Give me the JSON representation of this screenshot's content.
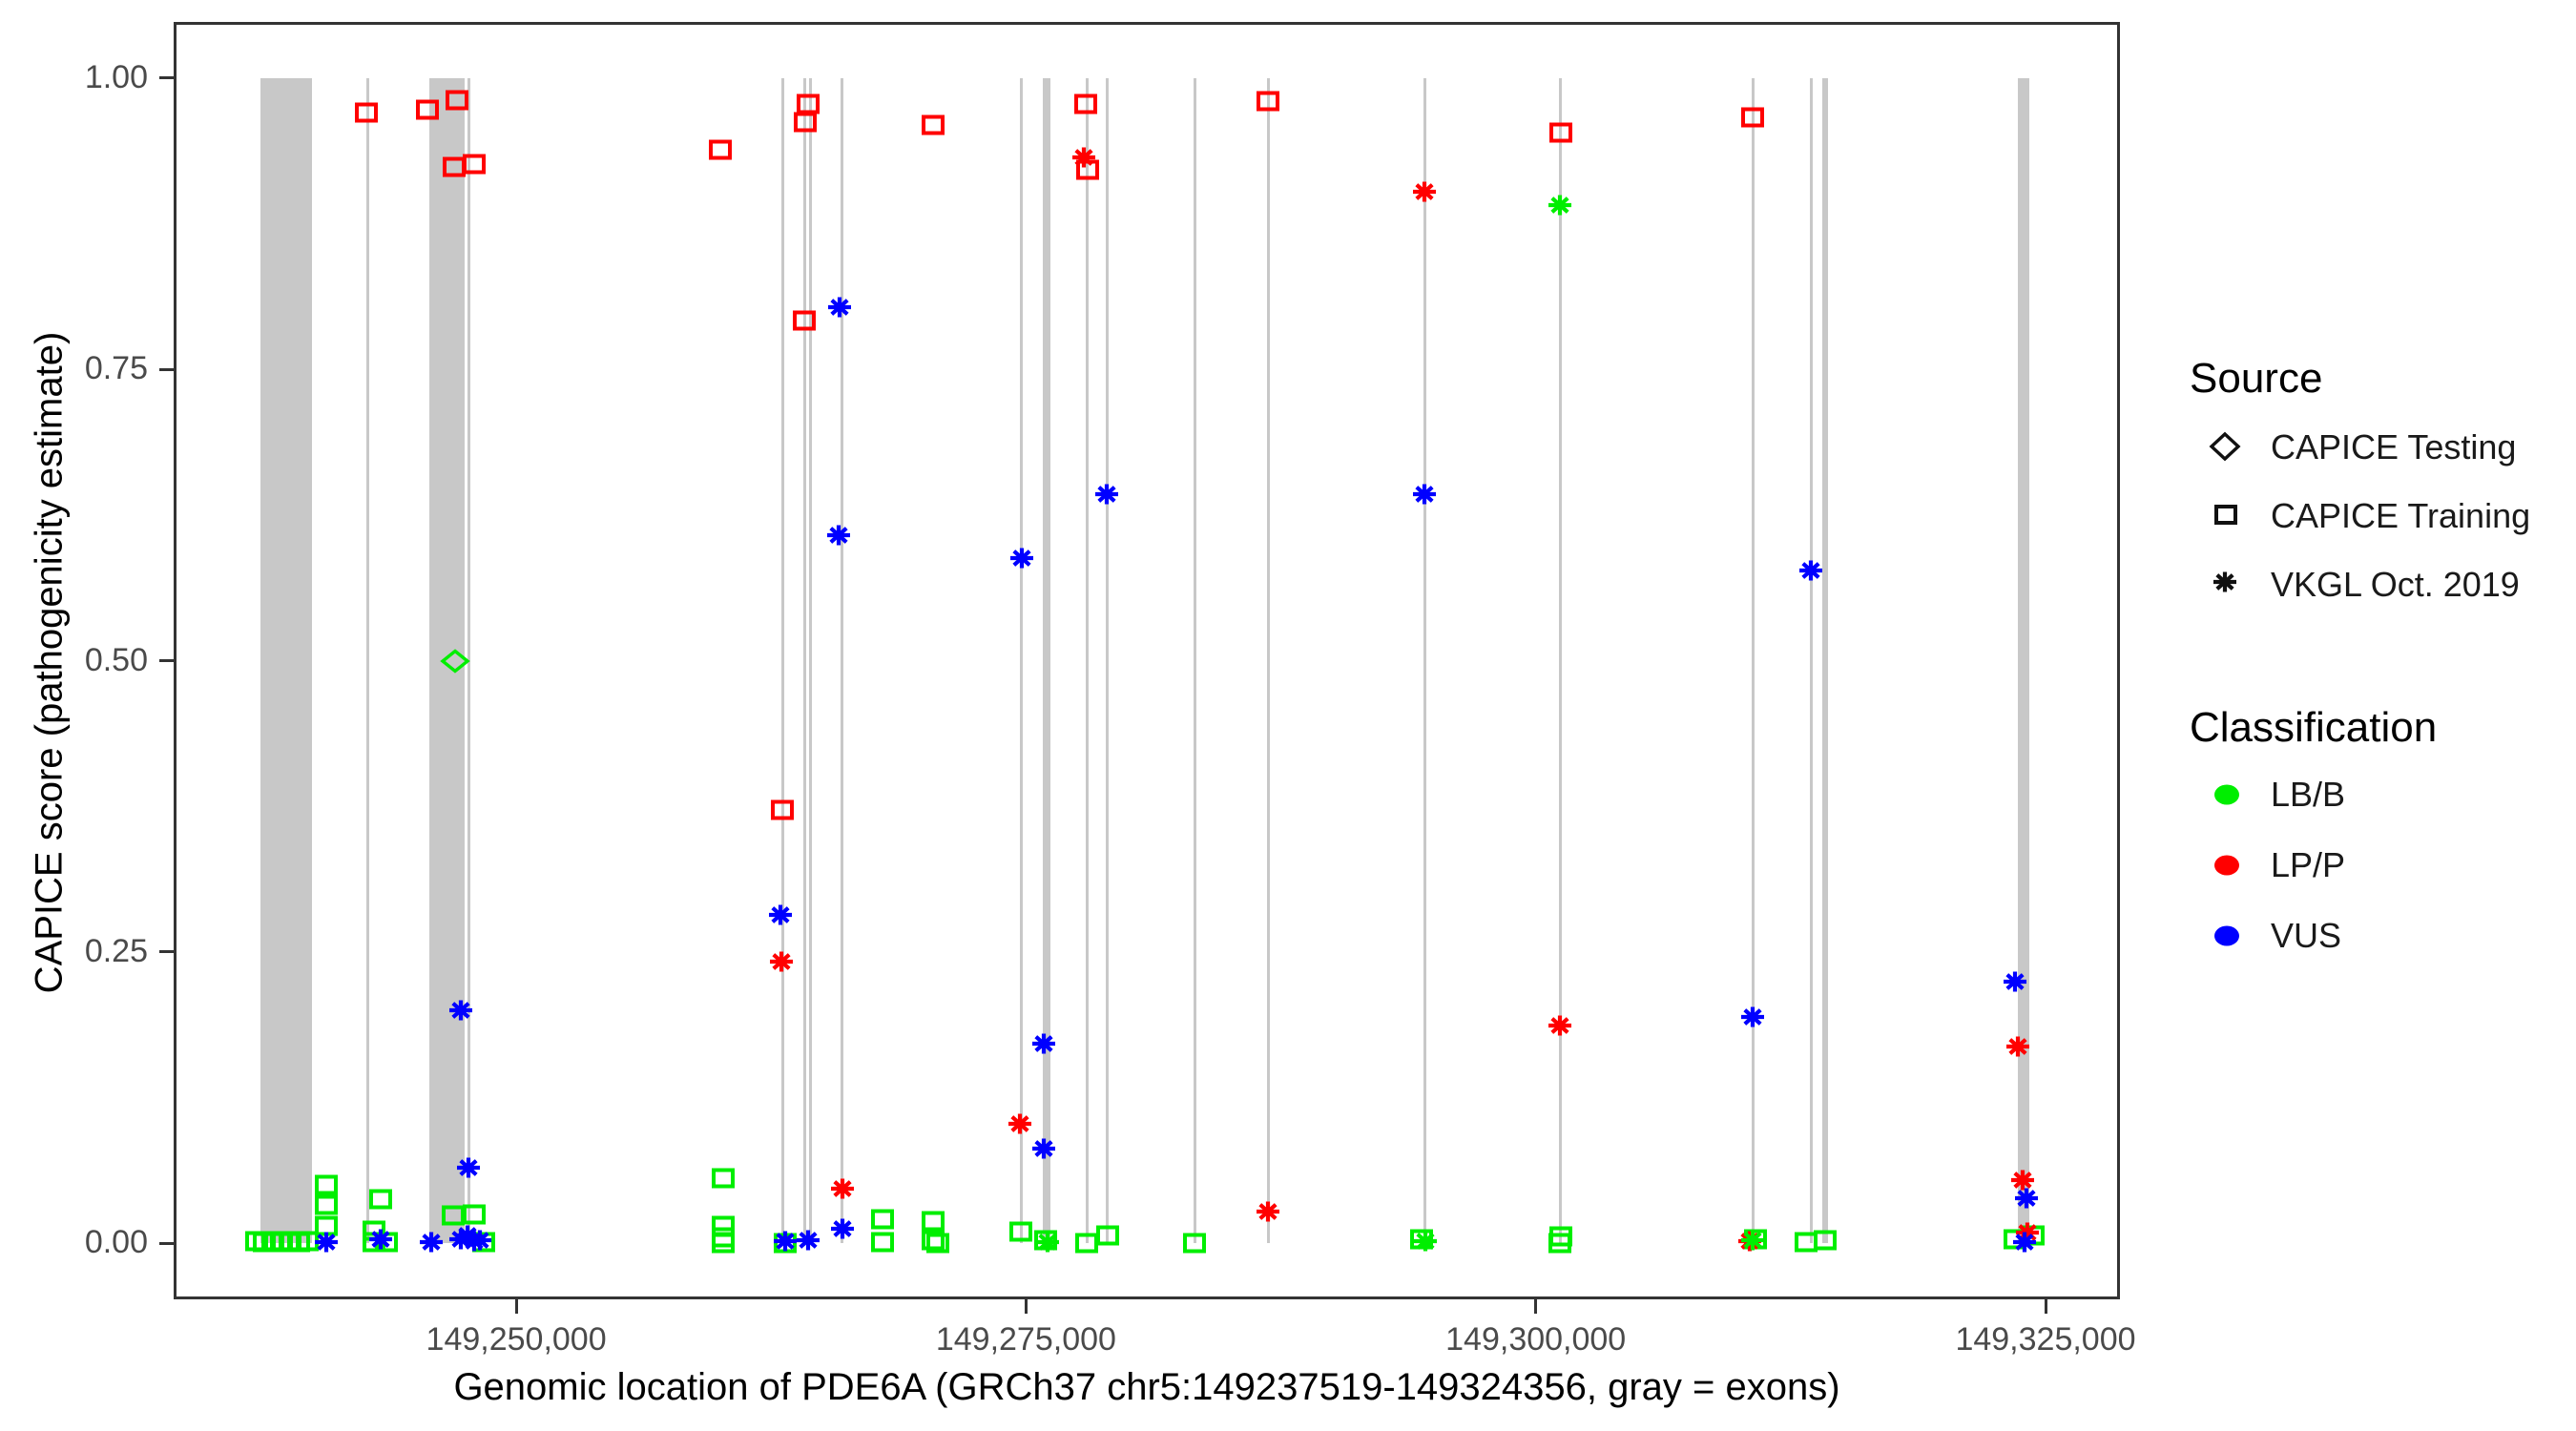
{
  "figure": {
    "xlabel": "Genomic location of PDE6A (GRCh37 chr5:149237519-149324356, gray = exons)",
    "ylabel": "CAPICE score (pathogenicity estimate)"
  },
  "legend": {
    "source": {
      "title": "Source",
      "items": [
        {
          "label": "CAPICE Testing",
          "symbol": "diamond"
        },
        {
          "label": "CAPICE Training",
          "symbol": "square"
        },
        {
          "label": "VKGL Oct. 2019",
          "symbol": "asterisk"
        }
      ]
    },
    "classification": {
      "title": "Classification",
      "items": [
        {
          "label": "LB/B",
          "color": "#00EE00"
        },
        {
          "label": "LP/P",
          "color": "#FF0000"
        },
        {
          "label": "VUS",
          "color": "#0000FF"
        }
      ]
    }
  },
  "chart_data": {
    "type": "scatter",
    "title": "",
    "xlabel": "Genomic location of PDE6A (GRCh37 chr5:149237519-149324356, gray = exons)",
    "ylabel": "CAPICE score (pathogenicity estimate)",
    "legend_position": "right",
    "grid": false,
    "x_axis": {
      "min": 149233200,
      "max": 149328650,
      "ticks": [
        {
          "v": 149250000,
          "label": "149,250,000"
        },
        {
          "v": 149275000,
          "label": "149,275,000"
        },
        {
          "v": 149300000,
          "label": "149,300,000"
        },
        {
          "v": 149325000,
          "label": "149,325,000"
        }
      ]
    },
    "y_axis": {
      "min": -0.048,
      "max": 1.048,
      "ticks": [
        {
          "v": 1.0,
          "label": "1.00"
        },
        {
          "v": 0.75,
          "label": "0.75"
        },
        {
          "v": 0.5,
          "label": "0.50"
        },
        {
          "v": 0.25,
          "label": "0.25"
        },
        {
          "v": 0.0,
          "label": "0.00"
        }
      ]
    },
    "exon_color": "#C8C8C8",
    "exon_note": "gray vertical bands/lines = exons of PDE6A, drawn from score 0 to 1",
    "exons": [
      [
        149237450,
        149240000
      ],
      [
        149242650,
        149242790
      ],
      [
        149245740,
        149247470
      ],
      [
        149247590,
        149247730
      ],
      [
        149262990,
        149263130
      ],
      [
        149264070,
        149264200
      ],
      [
        149264350,
        149264490
      ],
      [
        149265890,
        149266030
      ],
      [
        149274680,
        149274820
      ],
      [
        149275820,
        149276200
      ],
      [
        149277910,
        149278050
      ],
      [
        149278890,
        149279030
      ],
      [
        149283200,
        149283340
      ],
      [
        149286800,
        149286940
      ],
      [
        149294470,
        149294610
      ],
      [
        149301120,
        149301260
      ],
      [
        149310570,
        149310710
      ],
      [
        149313420,
        149313560
      ],
      [
        149314050,
        149314330
      ],
      [
        149323640,
        149324200
      ]
    ],
    "groups": [
      {
        "source": "CAPICE Training",
        "classification": "LP/P",
        "symbol": "square",
        "color": "#FF0000",
        "points": [
          [
            149242650,
            0.97
          ],
          [
            149245650,
            0.973
          ],
          [
            149247100,
            0.981
          ],
          [
            149246950,
            0.924
          ],
          [
            149247950,
            0.926
          ],
          [
            149260000,
            0.938
          ],
          [
            149264150,
            0.962
          ],
          [
            149264320,
            0.978
          ],
          [
            149264130,
            0.792
          ],
          [
            149263050,
            0.372
          ],
          [
            149270450,
            0.96
          ],
          [
            149277930,
            0.978
          ],
          [
            149278030,
            0.921
          ],
          [
            149286870,
            0.98
          ],
          [
            149301230,
            0.953
          ],
          [
            149310640,
            0.966
          ]
        ]
      },
      {
        "source": "CAPICE Training",
        "classification": "LB/B",
        "symbol": "square",
        "color": "#00EE00",
        "points": [
          [
            149237250,
            0.002
          ],
          [
            149237650,
            0.001
          ],
          [
            149238070,
            0.002
          ],
          [
            149238490,
            0.001
          ],
          [
            149238910,
            0.002
          ],
          [
            149239330,
            0.001
          ],
          [
            149239750,
            0.002
          ],
          [
            149240700,
            0.05
          ],
          [
            149240700,
            0.033
          ],
          [
            149240700,
            0.015
          ],
          [
            149243360,
            0.038
          ],
          [
            149243030,
            0.011
          ],
          [
            149243030,
            0.001
          ],
          [
            149243640,
            0.001
          ],
          [
            149246910,
            0.024
          ],
          [
            149247940,
            0.025
          ],
          [
            149248410,
            0.001
          ],
          [
            149260150,
            0.056
          ],
          [
            149260150,
            0.015
          ],
          [
            149260150,
            0.005
          ],
          [
            149260150,
            0.0
          ],
          [
            149263200,
            0.0
          ],
          [
            149267970,
            0.021
          ],
          [
            149267970,
            0.001
          ],
          [
            149270450,
            0.019
          ],
          [
            149270450,
            0.003
          ],
          [
            149270680,
            0.0
          ],
          [
            149274750,
            0.01
          ],
          [
            149275970,
            0.003
          ],
          [
            149277980,
            0.0
          ],
          [
            149279000,
            0.007
          ],
          [
            149283270,
            0.0
          ],
          [
            149294400,
            0.004
          ],
          [
            149301230,
            0.006
          ],
          [
            149301190,
            0.0
          ],
          [
            149310780,
            0.004
          ],
          [
            149313260,
            0.001
          ],
          [
            149314190,
            0.003
          ],
          [
            149323500,
            0.004
          ],
          [
            149324390,
            0.007
          ]
        ]
      },
      {
        "source": "CAPICE Testing",
        "classification": "LB/B",
        "symbol": "diamond",
        "color": "#00EE00",
        "points": [
          [
            149246990,
            0.5
          ]
        ]
      },
      {
        "source": "VKGL Oct. 2019",
        "classification": "LP/P",
        "symbol": "asterisk",
        "color": "#FF0000",
        "points": [
          [
            149277840,
            0.932
          ],
          [
            149294540,
            0.902
          ],
          [
            149301190,
            0.187
          ],
          [
            149263000,
            0.242
          ],
          [
            149274700,
            0.103
          ],
          [
            149266000,
            0.047
          ],
          [
            149286870,
            0.027
          ],
          [
            149323650,
            0.169
          ],
          [
            149323880,
            0.054
          ],
          [
            149324110,
            0.009
          ],
          [
            149310500,
            0.002
          ]
        ]
      },
      {
        "source": "VKGL Oct. 2019",
        "classification": "VUS",
        "symbol": "asterisk",
        "color": "#0000FF",
        "points": [
          [
            149265860,
            0.803
          ],
          [
            149265810,
            0.608
          ],
          [
            149262960,
            0.282
          ],
          [
            149247300,
            0.2
          ],
          [
            149247660,
            0.065
          ],
          [
            149274800,
            0.588
          ],
          [
            149278960,
            0.643
          ],
          [
            149275870,
            0.171
          ],
          [
            149275870,
            0.081
          ],
          [
            149294540,
            0.643
          ],
          [
            149310640,
            0.194
          ],
          [
            149313490,
            0.577
          ],
          [
            149323500,
            0.225
          ],
          [
            149324060,
            0.039
          ],
          [
            149323970,
            0.001
          ],
          [
            149266000,
            0.013
          ],
          [
            149240700,
            0.001
          ],
          [
            149243360,
            0.004
          ],
          [
            149245840,
            0.001
          ],
          [
            149247290,
            0.004
          ],
          [
            149247610,
            0.007
          ],
          [
            149247940,
            0.002
          ],
          [
            149248220,
            0.003
          ],
          [
            149263200,
            0.002
          ],
          [
            149264320,
            0.003
          ]
        ]
      },
      {
        "source": "VKGL Oct. 2019",
        "classification": "LB/B",
        "symbol": "asterisk",
        "color": "#00EE00",
        "points": [
          [
            149301190,
            0.891
          ],
          [
            149276060,
            0.001
          ],
          [
            149294590,
            0.002
          ],
          [
            149310640,
            0.003
          ]
        ]
      }
    ]
  }
}
